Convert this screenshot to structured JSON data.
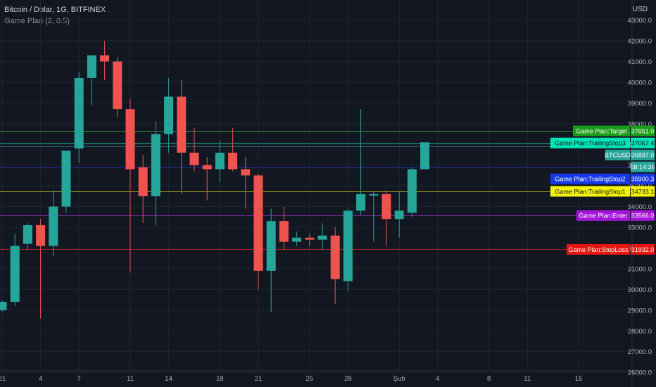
{
  "header": {
    "symbol_line": "Bitcoin / Dolar, 1G, BITFINEX",
    "indicator_line": "Game Plan (2, 0.5)",
    "currency": "USD"
  },
  "chart_data": {
    "type": "candlestick",
    "ylim": [
      25500,
      43400
    ],
    "y_ticks": [
      26000,
      27000,
      28000,
      29000,
      30000,
      31000,
      32000,
      33000,
      34000,
      35000,
      36000,
      37000,
      38000,
      39000,
      40000,
      41000,
      42000,
      43000
    ],
    "y_tick_labels": [
      "26000.0",
      "27000.0",
      "28000.0",
      "29000.0",
      "30000.0",
      "31000.0",
      "32000.0",
      "33000.0",
      "34000.0",
      "35000.0",
      "36000.0",
      "37000.0",
      "38000.0",
      "39000.0",
      "40000.0",
      "41000.0",
      "42000.0",
      "43000.0"
    ],
    "x_ticks": [
      {
        "day": 0,
        "label": "21"
      },
      {
        "day": 3,
        "label": "4"
      },
      {
        "day": 6,
        "label": "7"
      },
      {
        "day": 10,
        "label": "11"
      },
      {
        "day": 13,
        "label": "14"
      },
      {
        "day": 17,
        "label": "18"
      },
      {
        "day": 20,
        "label": "21"
      },
      {
        "day": 24,
        "label": "25"
      },
      {
        "day": 27,
        "label": "28"
      },
      {
        "day": 31,
        "label": "Şub"
      },
      {
        "day": 34,
        "label": "4"
      },
      {
        "day": 38,
        "label": "8"
      },
      {
        "day": 41,
        "label": "11"
      },
      {
        "day": 45,
        "label": "15"
      }
    ],
    "candles": [
      {
        "day": 0,
        "o": 29000,
        "h": 29500,
        "l": 28900,
        "c": 29400
      },
      {
        "day": 1,
        "o": 29400,
        "h": 32700,
        "l": 29200,
        "c": 32100
      },
      {
        "day": 2,
        "o": 32200,
        "h": 33200,
        "l": 31900,
        "c": 33100
      },
      {
        "day": 3,
        "o": 33100,
        "h": 33400,
        "l": 28600,
        "c": 32100
      },
      {
        "day": 4,
        "o": 32100,
        "h": 34800,
        "l": 31600,
        "c": 34000
      },
      {
        "day": 5,
        "o": 34000,
        "h": 36700,
        "l": 33700,
        "c": 36700
      },
      {
        "day": 6,
        "o": 36800,
        "h": 40500,
        "l": 36100,
        "c": 40200
      },
      {
        "day": 7,
        "o": 40200,
        "h": 41300,
        "l": 38900,
        "c": 41300
      },
      {
        "day": 8,
        "o": 41300,
        "h": 42000,
        "l": 40100,
        "c": 41000
      },
      {
        "day": 9,
        "o": 41000,
        "h": 41200,
        "l": 38300,
        "c": 38700
      },
      {
        "day": 10,
        "o": 38700,
        "h": 39200,
        "l": 30800,
        "c": 35800
      },
      {
        "day": 11,
        "o": 35900,
        "h": 36500,
        "l": 33200,
        "c": 34500
      },
      {
        "day": 12,
        "o": 34500,
        "h": 38100,
        "l": 33100,
        "c": 37500
      },
      {
        "day": 13,
        "o": 37500,
        "h": 40200,
        "l": 36600,
        "c": 39300
      },
      {
        "day": 14,
        "o": 39300,
        "h": 40100,
        "l": 34600,
        "c": 36600
      },
      {
        "day": 15,
        "o": 36600,
        "h": 37800,
        "l": 35700,
        "c": 36000
      },
      {
        "day": 16,
        "o": 36000,
        "h": 36400,
        "l": 34300,
        "c": 35800
      },
      {
        "day": 17,
        "o": 35800,
        "h": 37200,
        "l": 35200,
        "c": 36600
      },
      {
        "day": 18,
        "o": 36600,
        "h": 37800,
        "l": 35700,
        "c": 35800
      },
      {
        "day": 19,
        "o": 35800,
        "h": 36400,
        "l": 33900,
        "c": 35500
      },
      {
        "day": 20,
        "o": 35500,
        "h": 35600,
        "l": 30000,
        "c": 30900
      },
      {
        "day": 21,
        "o": 30900,
        "h": 33900,
        "l": 28900,
        "c": 33300
      },
      {
        "day": 22,
        "o": 33300,
        "h": 34000,
        "l": 31900,
        "c": 32300
      },
      {
        "day": 23,
        "o": 32300,
        "h": 32800,
        "l": 32100,
        "c": 32500
      },
      {
        "day": 24,
        "o": 32500,
        "h": 32700,
        "l": 32100,
        "c": 32400
      },
      {
        "day": 25,
        "o": 32400,
        "h": 33200,
        "l": 31900,
        "c": 32600
      },
      {
        "day": 26,
        "o": 32600,
        "h": 33000,
        "l": 29300,
        "c": 30500
      },
      {
        "day": 27,
        "o": 30400,
        "h": 33900,
        "l": 29900,
        "c": 33800
      },
      {
        "day": 28,
        "o": 33800,
        "h": 38700,
        "l": 33600,
        "c": 34600
      },
      {
        "day": 29,
        "o": 34600,
        "h": 34700,
        "l": 32300,
        "c": 34600
      },
      {
        "day": 30,
        "o": 34600,
        "h": 34800,
        "l": 32100,
        "c": 33400
      },
      {
        "day": 31,
        "o": 33400,
        "h": 34700,
        "l": 32500,
        "c": 33800
      },
      {
        "day": 32,
        "o": 33700,
        "h": 35900,
        "l": 33500,
        "c": 35800
      },
      {
        "day": 33,
        "o": 35800,
        "h": 37100,
        "l": 35800,
        "c": 37100
      }
    ],
    "levels": [
      {
        "name": "Game Plan:Target",
        "value": "37651.0",
        "price": 37651.0,
        "color": "#1a9e1a",
        "text_color": "#ffffff"
      },
      {
        "name": "Game Plan:TrailingStop3",
        "value": "37067.4",
        "price": 37067.4,
        "color": "#00e5b8",
        "text_color": "#0b1a17"
      },
      {
        "name": "BTCUSD",
        "value": "36897.0",
        "price": 36897.0,
        "color": "#26a69a",
        "text_color": "#ffffff"
      },
      {
        "name": "",
        "value": "08:14:36",
        "price": 36350.0,
        "color": "#26a69a",
        "text_color": "#ffffff"
      },
      {
        "name": "Game Plan:TrailingStop2",
        "value": "35900.3",
        "price": 35900.3,
        "color": "#1538e8",
        "text_color": "#ffffff"
      },
      {
        "name": "Game Plan:TrailingStop1",
        "value": "34733.1",
        "price": 34733.1,
        "color": "#f2f20d",
        "text_color": "#1a1a00"
      },
      {
        "name": "Game Plan:Enter",
        "value": "33566.0",
        "price": 33566.0,
        "color": "#a415d9",
        "text_color": "#ffffff"
      },
      {
        "name": "Game Plan:StopLoss",
        "value": "31932.0",
        "price": 31932.0,
        "color": "#e81515",
        "text_color": "#ffffff"
      }
    ],
    "level_lines": [
      {
        "price": 37651.0,
        "color": "#2fa82f"
      },
      {
        "price": 37067.4,
        "color": "#1fc3a5"
      },
      {
        "price": 36897.0,
        "color": "#2a7f7a"
      },
      {
        "price": 35900.3,
        "color": "#2134b0"
      },
      {
        "price": 34733.1,
        "color": "#b8b81a"
      },
      {
        "price": 33566.0,
        "color": "#8a2ab0"
      },
      {
        "price": 31932.0,
        "color": "#c21e1e"
      }
    ],
    "colors": {
      "background": "#131722",
      "up": "#26a69a",
      "down": "#ef5350",
      "grid": "#1f2433",
      "axis_text": "#b2b5be"
    },
    "grid": true
  }
}
